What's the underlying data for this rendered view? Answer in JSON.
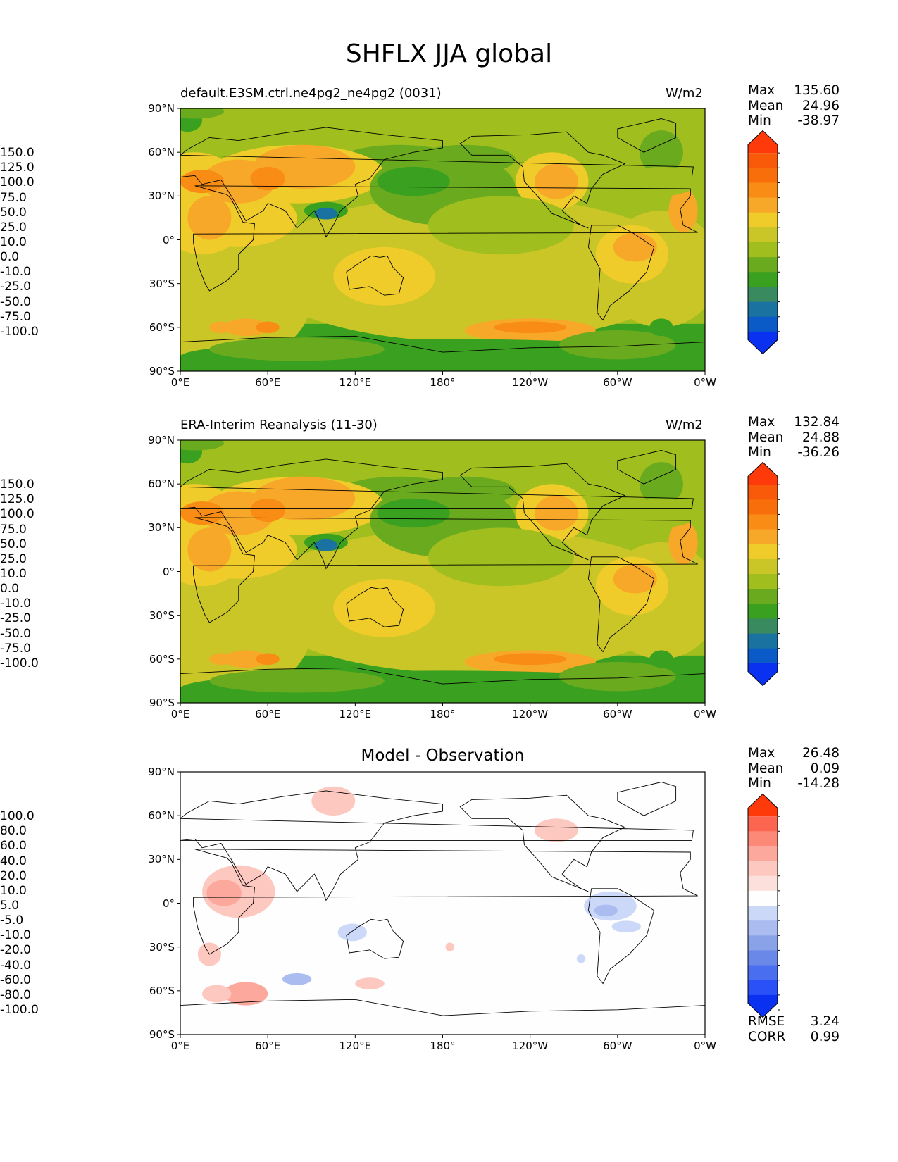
{
  "figure": {
    "title": "SHFLX JJA global"
  },
  "colors": {
    "model_palette": [
      "#0a30f0",
      "#0a5ac8",
      "#1a72a0",
      "#3a8a60",
      "#3aa020",
      "#6aaa1e",
      "#a0be1e",
      "#cac628",
      "#f0cc2a",
      "#f8a828",
      "#f88c14",
      "#f86e0a",
      "#f85a0a",
      "#ff3a0a"
    ],
    "diff_palette": [
      "#0a30f0",
      "#2a50f8",
      "#4a6ef0",
      "#6a88e8",
      "#8aa2e8",
      "#aabcf0",
      "#ccd8f8",
      "#fefefe",
      "#fce0dc",
      "#fcc8c0",
      "#fca89c",
      "#fc8878",
      "#fc6650",
      "#ff3a0a"
    ]
  },
  "chart_data": [
    {
      "type": "heatmap",
      "title_left": "default.E3SM.ctrl.ne4pg2_ne4pg2 (0031)",
      "title_right": "W/m2",
      "stats": {
        "Max": "135.60",
        "Mean": "24.96",
        "Min": "-38.97"
      },
      "x_ticks": [
        "0°E",
        "60°E",
        "120°E",
        "180°",
        "120°W",
        "60°W",
        "0°W"
      ],
      "y_ticks": [
        "90°N",
        "60°N",
        "30°N",
        "0°",
        "30°S",
        "60°S",
        "90°S"
      ],
      "xlim": [
        0,
        360
      ],
      "ylim": [
        -90,
        90
      ],
      "colorbar_levels": [
        "150.0",
        "125.0",
        "100.0",
        "75.0",
        "50.0",
        "25.0",
        "10.0",
        "0.0",
        "-10.0",
        "-25.0",
        "-50.0",
        "-75.0",
        "-100.0"
      ]
    },
    {
      "type": "heatmap",
      "title_left": "ERA-Interim Reanalysis (11-30)",
      "title_right": "W/m2",
      "stats": {
        "Max": "132.84",
        "Mean": "24.88",
        "Min": "-36.26"
      },
      "x_ticks": [
        "0°E",
        "60°E",
        "120°E",
        "180°",
        "120°W",
        "60°W",
        "0°W"
      ],
      "y_ticks": [
        "90°N",
        "60°N",
        "30°N",
        "0°",
        "30°S",
        "60°S",
        "90°S"
      ],
      "xlim": [
        0,
        360
      ],
      "ylim": [
        -90,
        90
      ],
      "colorbar_levels": [
        "150.0",
        "125.0",
        "100.0",
        "75.0",
        "50.0",
        "25.0",
        "10.0",
        "0.0",
        "-10.0",
        "-25.0",
        "-50.0",
        "-75.0",
        "-100.0"
      ]
    },
    {
      "type": "heatmap",
      "title_center": "Model - Observation",
      "stats": {
        "Max": "26.48",
        "Mean": "0.09",
        "Min": "-14.28"
      },
      "metrics": {
        "RMSE": "3.24",
        "CORR": "0.99"
      },
      "x_ticks": [
        "0°E",
        "60°E",
        "120°E",
        "180°",
        "120°W",
        "60°W",
        "0°W"
      ],
      "y_ticks": [
        "90°N",
        "60°N",
        "30°N",
        "0°",
        "30°S",
        "60°S",
        "90°S"
      ],
      "xlim": [
        0,
        360
      ],
      "ylim": [
        -90,
        90
      ],
      "colorbar_levels": [
        "100.0",
        "80.0",
        "60.0",
        "40.0",
        "20.0",
        "10.0",
        "5.0",
        "-5.0",
        "-10.0",
        "-20.0",
        "-40.0",
        "-60.0",
        "-80.0",
        "-100.0"
      ]
    }
  ]
}
